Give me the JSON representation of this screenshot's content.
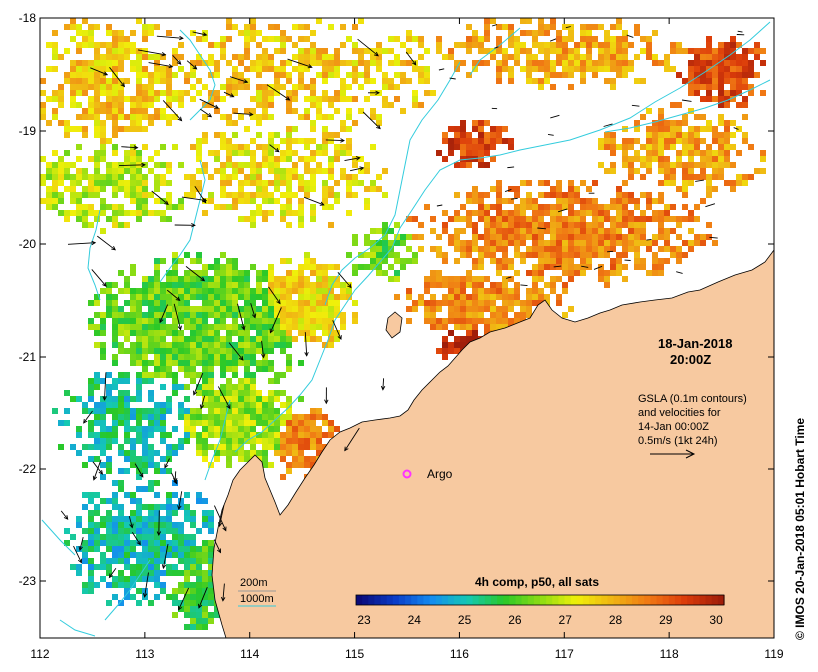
{
  "map": {
    "x_axis": {
      "ticks": [
        "112",
        "113",
        "114",
        "115",
        "116",
        "117",
        "118",
        "119"
      ]
    },
    "y_axis": {
      "ticks": [
        "-18",
        "-19",
        "-20",
        "-21",
        "-22",
        "-23"
      ]
    },
    "land_color": "#f7c9a0",
    "ocean_color": "#ffffff",
    "contour_color": "#33ccdd"
  },
  "timestamp": {
    "date": "18-Jan-2018",
    "time": "20:00Z"
  },
  "gsla_info": {
    "line1": "GSLA (0.1m contours)",
    "line2": "and velocities for",
    "line3": "14-Jan 00:00Z",
    "line4": "0.5m/s (1kt 24h)"
  },
  "marker": {
    "label": "Argo",
    "color": "#ff33ff"
  },
  "isobaths": {
    "label1": "200m",
    "label2": "1000m"
  },
  "colorbar": {
    "title": "4h comp, p50, all sats",
    "ticks": [
      "23",
      "24",
      "25",
      "26",
      "27",
      "28",
      "29",
      "30"
    ],
    "colors": [
      "#0a0a78",
      "#0a3cc8",
      "#148cf0",
      "#14c8b4",
      "#28c828",
      "#8cdc14",
      "#f0f00a",
      "#f0b414",
      "#f07814",
      "#dc3c0a",
      "#a01e0a"
    ]
  },
  "credit": "© IMOS 20-Jan-2018 05:01 Hobart Time"
}
